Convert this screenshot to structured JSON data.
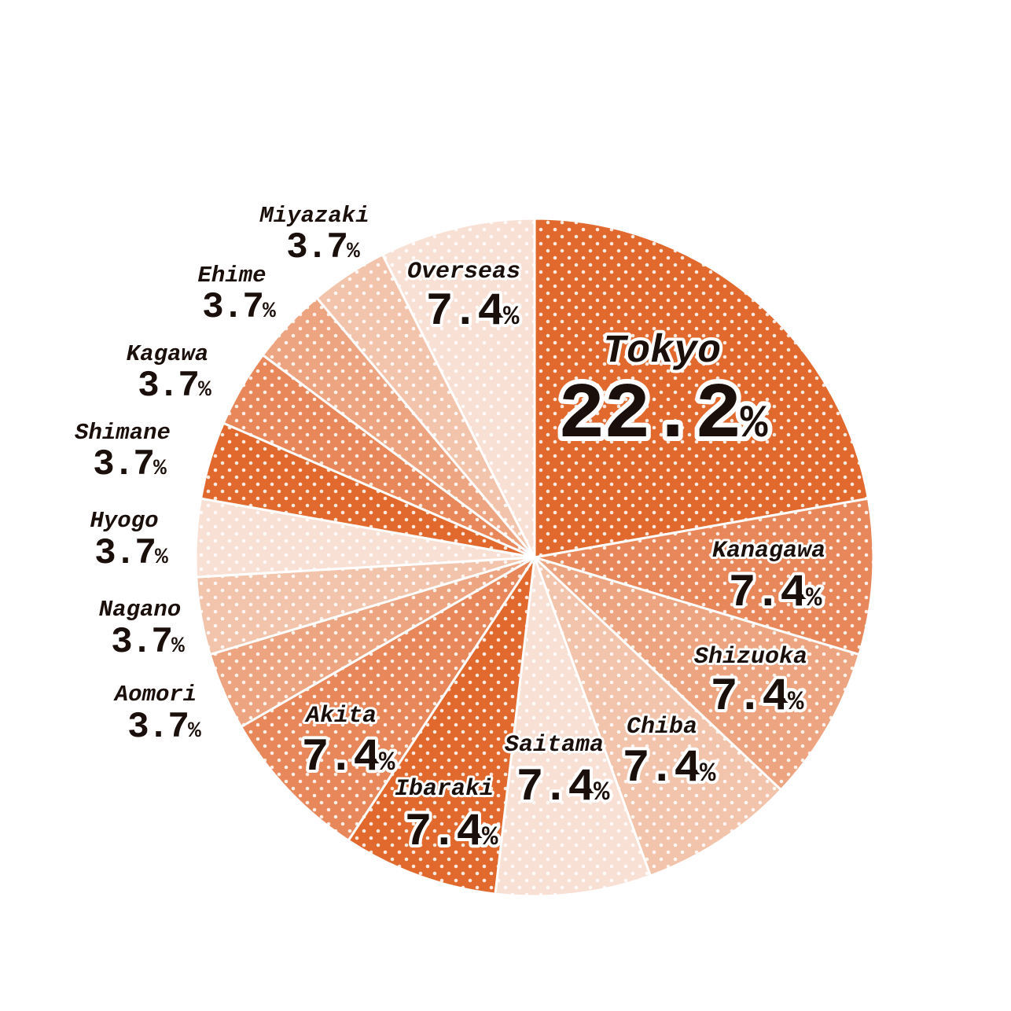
{
  "chart_data": {
    "type": "pie",
    "start": "top",
    "direction": "clockwise",
    "slices": [
      {
        "label": "Tokyo",
        "value": 22.2,
        "display": "22.2",
        "unit": "%",
        "color": "#e2692d"
      },
      {
        "label": "Kanagawa",
        "value": 7.4,
        "display": "7.4",
        "unit": "%",
        "color": "#e8875a"
      },
      {
        "label": "Shizuoka",
        "value": 7.4,
        "display": "7.4",
        "unit": "%",
        "color": "#eda581"
      },
      {
        "label": "Chiba",
        "value": 7.4,
        "display": "7.4",
        "unit": "%",
        "color": "#f2c4ab"
      },
      {
        "label": "Saitama",
        "value": 7.4,
        "display": "7.4",
        "unit": "%",
        "color": "#f8e0d4"
      },
      {
        "label": "Ibaraki",
        "value": 7.4,
        "display": "7.4",
        "unit": "%",
        "color": "#e2692d"
      },
      {
        "label": "Akita",
        "value": 7.4,
        "display": "7.4",
        "unit": "%",
        "color": "#e8875a"
      },
      {
        "label": "Aomori",
        "value": 3.7,
        "display": "3.7",
        "unit": "%",
        "color": "#eda581"
      },
      {
        "label": "Nagano",
        "value": 3.7,
        "display": "3.7",
        "unit": "%",
        "color": "#f2c4ab"
      },
      {
        "label": "Hyogo",
        "value": 3.7,
        "display": "3.7",
        "unit": "%",
        "color": "#f8e0d4"
      },
      {
        "label": "Shimane",
        "value": 3.7,
        "display": "3.7",
        "unit": "%",
        "color": "#e2692d"
      },
      {
        "label": "Kagawa",
        "value": 3.7,
        "display": "3.7",
        "unit": "%",
        "color": "#e8875a"
      },
      {
        "label": "Ehime",
        "value": 3.7,
        "display": "3.7",
        "unit": "%",
        "color": "#eda581"
      },
      {
        "label": "Miyazaki",
        "value": 3.7,
        "display": "3.7",
        "unit": "%",
        "color": "#f2c4ab"
      },
      {
        "label": "Overseas",
        "value": 7.4,
        "display": "7.4",
        "unit": "%",
        "color": "#f8e0d4"
      }
    ]
  }
}
